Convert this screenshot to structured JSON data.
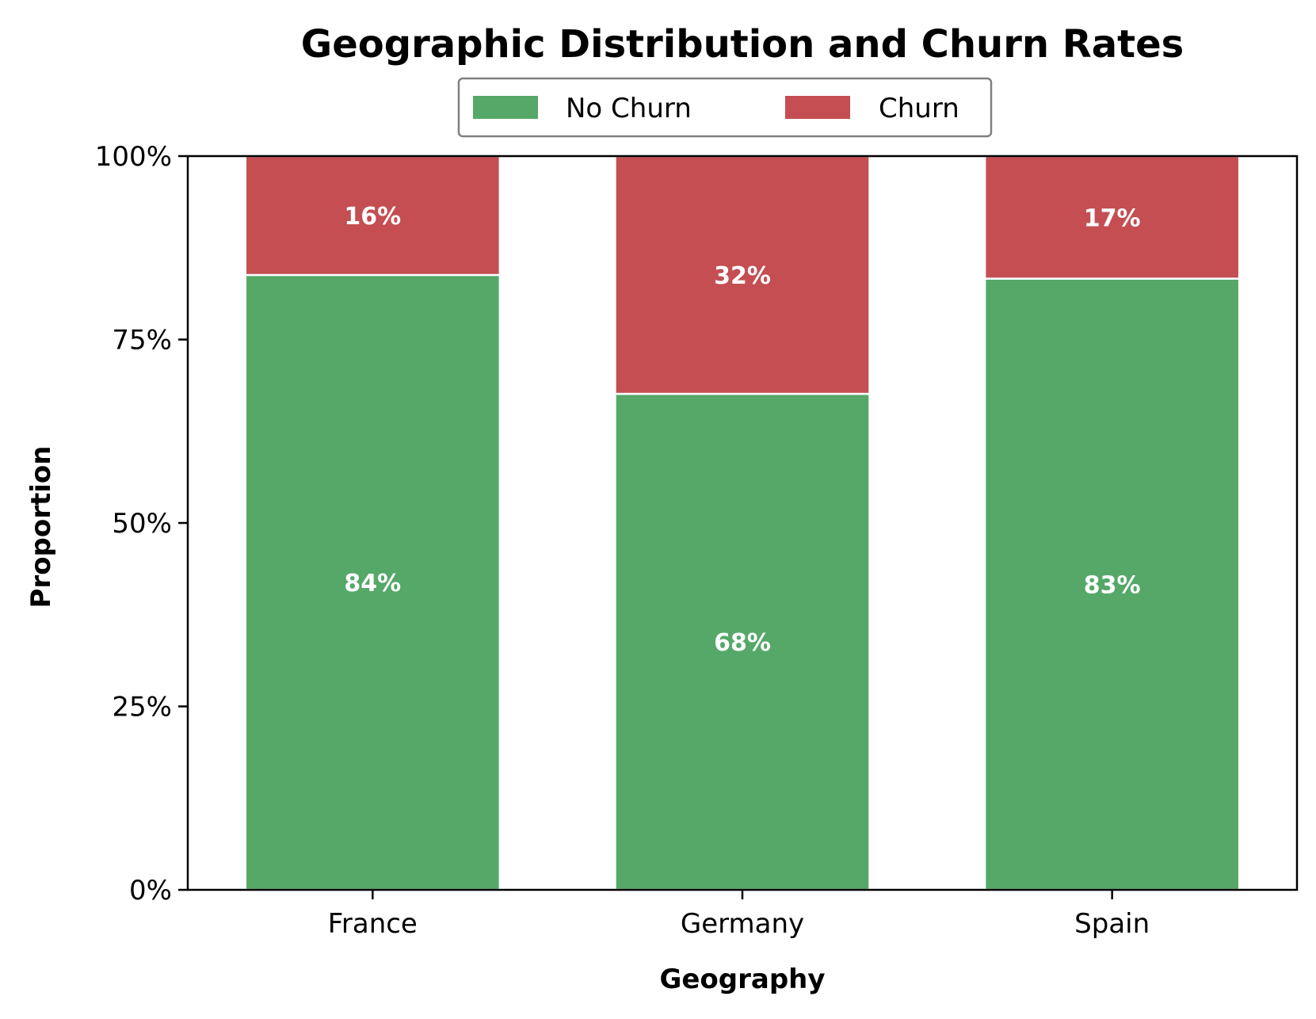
{
  "chart_data": {
    "type": "bar",
    "stacked": true,
    "title": "Geographic Distribution and Churn Rates",
    "xlabel": "Geography",
    "ylabel": "Proportion",
    "ylim": [
      0,
      1
    ],
    "yticks": [
      0,
      0.25,
      0.5,
      0.75,
      1.0
    ],
    "ytick_labels": [
      "0%",
      "25%",
      "50%",
      "75%",
      "100%"
    ],
    "categories": [
      "France",
      "Germany",
      "Spain"
    ],
    "series": [
      {
        "name": "No Churn",
        "color": "#55a868",
        "values": [
          0.838,
          0.676,
          0.833
        ],
        "labels": [
          "84%",
          "68%",
          "83%"
        ]
      },
      {
        "name": "Churn",
        "color": "#c44e52",
        "values": [
          0.162,
          0.324,
          0.167
        ],
        "labels": [
          "16%",
          "32%",
          "17%"
        ]
      }
    ],
    "legend": {
      "position": "top-center",
      "columns": 2
    },
    "grid": false
  }
}
